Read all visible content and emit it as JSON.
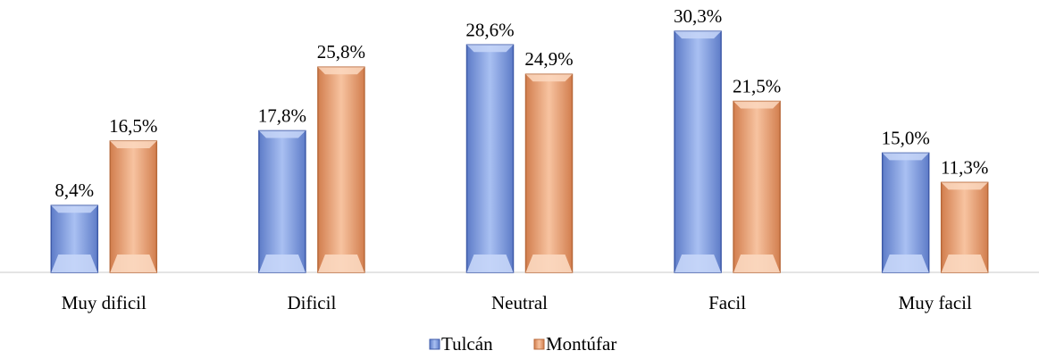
{
  "chart_data": {
    "type": "bar",
    "categories": [
      "Muy dificil",
      "Dificil",
      "Neutral",
      "Facil",
      "Muy facil"
    ],
    "series": [
      {
        "name": "Tulcán",
        "values": [
          8.4,
          17.8,
          28.6,
          30.3,
          15.0
        ],
        "labels": [
          "8,4%",
          "17,8%",
          "28,6%",
          "30,3%",
          "15,0%"
        ],
        "color": "#8EA9E6"
      },
      {
        "name": "Montúfar",
        "values": [
          16.5,
          25.8,
          24.9,
          21.5,
          11.3
        ],
        "labels": [
          "16,5%",
          "25,8%",
          "24,9%",
          "21,5%",
          "11,3%"
        ],
        "color": "#F2A77A"
      }
    ],
    "ylim": [
      0,
      32
    ],
    "legend_position": "bottom",
    "grid": false
  }
}
